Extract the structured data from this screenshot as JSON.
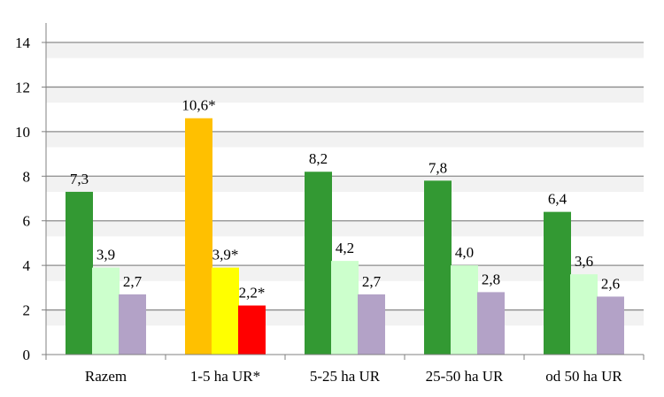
{
  "chart_data": {
    "type": "bar",
    "title": "",
    "xlabel": "",
    "ylabel": "",
    "ylim": [
      0,
      14
    ],
    "yticks": [
      "0",
      "2",
      "4",
      "6",
      "8",
      "10",
      "12",
      "14"
    ],
    "ytick_values": [
      0,
      2,
      4,
      6,
      8,
      10,
      12,
      14
    ],
    "grid": true,
    "legend": "none",
    "categories": [
      "Razem",
      "1-5 ha UR*",
      "5-25 ha UR",
      "25-50 ha UR",
      "od 50 ha UR"
    ],
    "series": [
      {
        "values": [
          7.3,
          10.6,
          8.2,
          7.8,
          6.4
        ],
        "labels": [
          "7,3",
          "10,6*",
          "8,2",
          "7,8",
          "6,4"
        ],
        "colors": [
          "#339933",
          "#FFC000",
          "#339933",
          "#339933",
          "#339933"
        ]
      },
      {
        "values": [
          3.9,
          3.9,
          4.2,
          4.0,
          3.6
        ],
        "labels": [
          "3,9",
          "3,9*",
          "4,2",
          "4,0",
          "3,6"
        ],
        "colors": [
          "#CCFFCC",
          "#FFFF00",
          "#CCFFCC",
          "#CCFFCC",
          "#CCFFCC"
        ]
      },
      {
        "values": [
          2.7,
          2.2,
          2.7,
          2.8,
          2.6
        ],
        "labels": [
          "2,7",
          "2,2*",
          "2,7",
          "2,8",
          "2,6"
        ],
        "colors": [
          "#B3A2C7",
          "#FF0000",
          "#B3A2C7",
          "#B3A2C7",
          "#B3A2C7"
        ]
      }
    ],
    "colors": {
      "gridline": "#8C8C8C",
      "axis": "#808080",
      "band_light": "#F2F2F2"
    }
  }
}
